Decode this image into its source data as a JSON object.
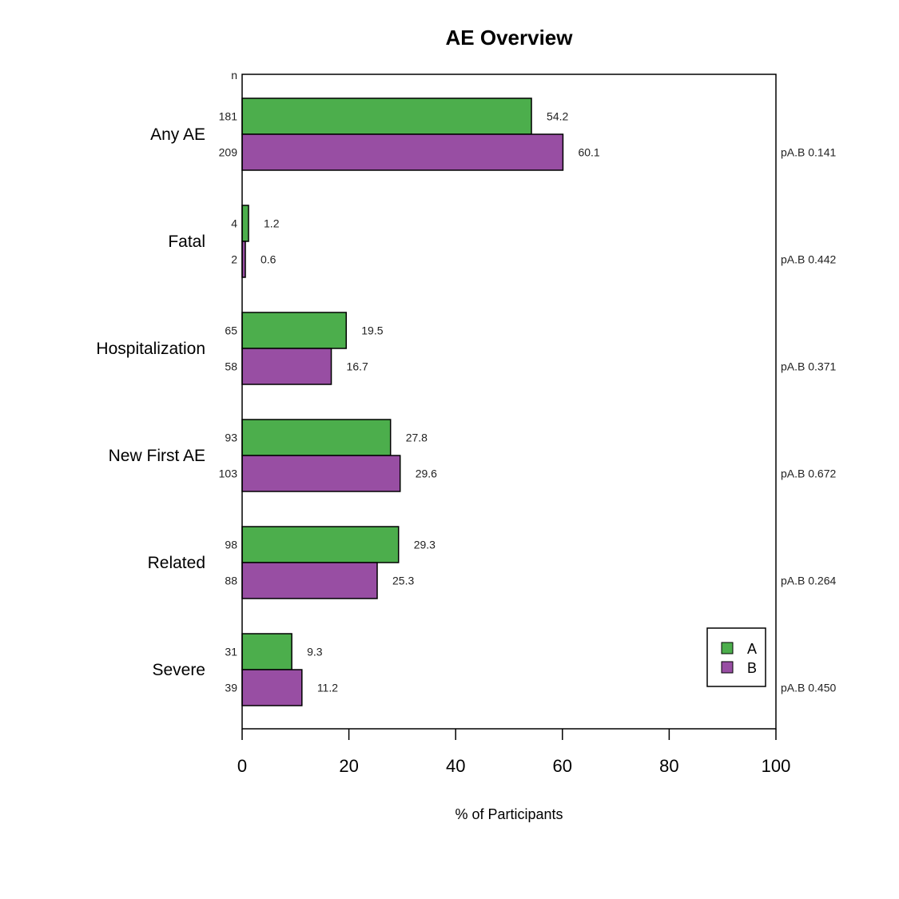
{
  "chart_data": {
    "type": "bar",
    "orientation": "horizontal",
    "title": "AE Overview",
    "xlabel": "% of Participants",
    "n_header": "n",
    "xlim": [
      0,
      100
    ],
    "xticks": [
      0,
      20,
      40,
      60,
      80,
      100
    ],
    "grid": false,
    "legend": {
      "position": "bottom-right",
      "entries": [
        "A",
        "B"
      ]
    },
    "colors": {
      "A": "#4cae4c",
      "B": "#984ea3"
    },
    "categories": [
      "Any AE",
      "Fatal",
      "Hospitalization",
      "New First AE",
      "Related",
      "Severe"
    ],
    "series": [
      {
        "name": "A",
        "values": [
          54.2,
          1.2,
          19.5,
          27.8,
          29.3,
          9.3
        ],
        "n": [
          "181",
          "4",
          "65",
          "93",
          "98",
          "31"
        ]
      },
      {
        "name": "B",
        "values": [
          60.1,
          0.6,
          16.7,
          29.6,
          25.3,
          11.2
        ],
        "n": [
          "209",
          "2",
          "58",
          "103",
          "88",
          "39"
        ]
      }
    ],
    "value_labels": {
      "A": [
        "54.2",
        "1.2",
        "19.5",
        "27.8",
        "29.3",
        "9.3"
      ],
      "B": [
        "60.1",
        "0.6",
        "16.7",
        "29.6",
        "25.3",
        "11.2"
      ]
    },
    "p_values": [
      "pA.B 0.141",
      "pA.B 0.442",
      "pA.B 0.371",
      "pA.B 0.672",
      "pA.B 0.264",
      "pA.B 0.450"
    ]
  }
}
